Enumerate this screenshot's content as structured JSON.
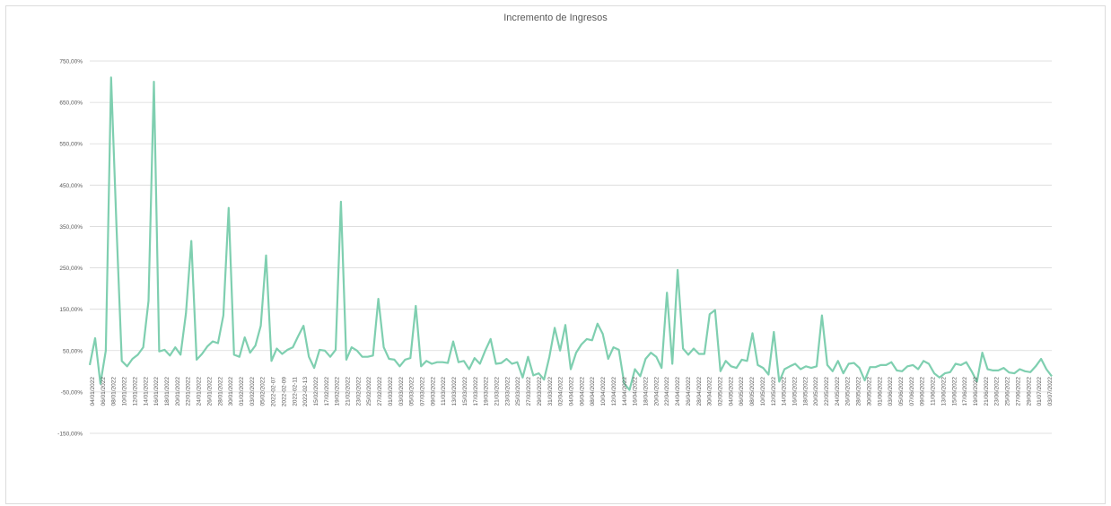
{
  "chart_data": {
    "type": "line",
    "title": "Incremento de Ingresos",
    "xlabel": "",
    "ylabel": "",
    "ylim": [
      -150,
      750
    ],
    "yticks": [
      "750,00%",
      "650,00%",
      "550,00%",
      "450,00%",
      "350,00%",
      "250,00%",
      "150,00%",
      "50,00%",
      "-50,00%",
      "-150,00%"
    ],
    "ytick_values": [
      750,
      650,
      550,
      450,
      350,
      250,
      150,
      50,
      -50,
      -150
    ],
    "grid": true,
    "series_color": "#7fcfb0",
    "x_labels": [
      "04/01/2022",
      "06/01/2022",
      "08/01/2022",
      "10/01/2022",
      "12/01/2022",
      "14/01/2022",
      "16/01/2022",
      "18/01/2022",
      "20/01/2022",
      "22/01/2022",
      "24/01/2022",
      "26/01/2022",
      "28/01/2022",
      "30/01/2022",
      "01/02/2022",
      "03/02/2022",
      "05/02/2022",
      "2022-02-07",
      "2022-02-09",
      "2022-02-11",
      "2022-02-13",
      "15/02/2022",
      "17/02/2022",
      "19/02/2022",
      "21/02/2022",
      "23/02/2022",
      "25/02/2022",
      "27/02/2022",
      "01/03/2022",
      "03/03/2022",
      "05/03/2022",
      "07/03/2022",
      "09/03/2022",
      "11/03/2022",
      "13/03/2022",
      "15/03/2022",
      "17/03/2022",
      "19/03/2022",
      "21/03/2022",
      "23/03/2022",
      "25/03/2022",
      "27/03/2022",
      "29/03/2022",
      "31/03/2022",
      "02/04/2022",
      "04/04/2022",
      "06/04/2022",
      "08/04/2022",
      "10/04/2022",
      "12/04/2022",
      "14/04/2022",
      "16/04/2022",
      "18/04/2022",
      "20/04/2022",
      "22/04/2022",
      "24/04/2022",
      "26/04/2022",
      "28/04/2022",
      "30/04/2022",
      "02/05/2022",
      "04/05/2022",
      "06/05/2022",
      "08/05/2022",
      "10/05/2022",
      "12/05/2022",
      "14/05/2022",
      "16/05/2022",
      "18/05/2022",
      "20/05/2022",
      "22/05/2022",
      "24/05/2022",
      "26/05/2022",
      "28/05/2022",
      "30/05/2022",
      "01/06/2022",
      "03/06/2022",
      "05/06/2022",
      "07/06/2022",
      "09/06/2022",
      "11/06/2022",
      "13/06/2022",
      "15/06/2022",
      "17/06/2022",
      "19/06/2022",
      "21/06/2022",
      "23/06/2022",
      "25/06/2022",
      "27/06/2022",
      "29/06/2022",
      "01/07/2022",
      "03/07/2022"
    ],
    "series": [
      {
        "values": [
          15,
          80,
          -30,
          50,
          710,
          350,
          25,
          12,
          30,
          40,
          58,
          170,
          700,
          48,
          52,
          38,
          58,
          40,
          140,
          315,
          28,
          42,
          60,
          72,
          68,
          135,
          395,
          40,
          35,
          82,
          45,
          62,
          110,
          280,
          25,
          55,
          42,
          52,
          58,
          85,
          110,
          35,
          8,
          52,
          50,
          35,
          52,
          410,
          28,
          58,
          50,
          35,
          35,
          38,
          175,
          58,
          30,
          28,
          12,
          28,
          32,
          158,
          12,
          25,
          18,
          22,
          22,
          20,
          72,
          22,
          25,
          5,
          32,
          18,
          50,
          78,
          18,
          20,
          30,
          18,
          22,
          -15,
          35,
          -10,
          -5,
          -20,
          35,
          105,
          50,
          112,
          5,
          45,
          65,
          78,
          75,
          115,
          90,
          30,
          58,
          52,
          -30,
          -45,
          5,
          -12,
          30,
          45,
          35,
          8,
          190,
          18,
          245,
          55,
          40,
          55,
          42,
          42,
          138,
          148,
          0,
          25,
          12,
          8,
          28,
          25,
          92,
          15,
          8,
          -8,
          95,
          -25,
          5,
          12,
          18,
          5,
          12,
          8,
          12,
          135,
          15,
          0,
          25,
          -5,
          18,
          20,
          8,
          -22,
          10,
          10,
          15,
          15,
          22,
          2,
          0,
          12,
          15,
          5,
          25,
          18,
          -5,
          -15,
          -5,
          -2,
          18,
          15,
          22,
          0,
          -25,
          45,
          5,
          2,
          2,
          8,
          -3,
          -5,
          5,
          0,
          -2,
          12,
          30,
          5,
          -12
        ]
      }
    ]
  }
}
